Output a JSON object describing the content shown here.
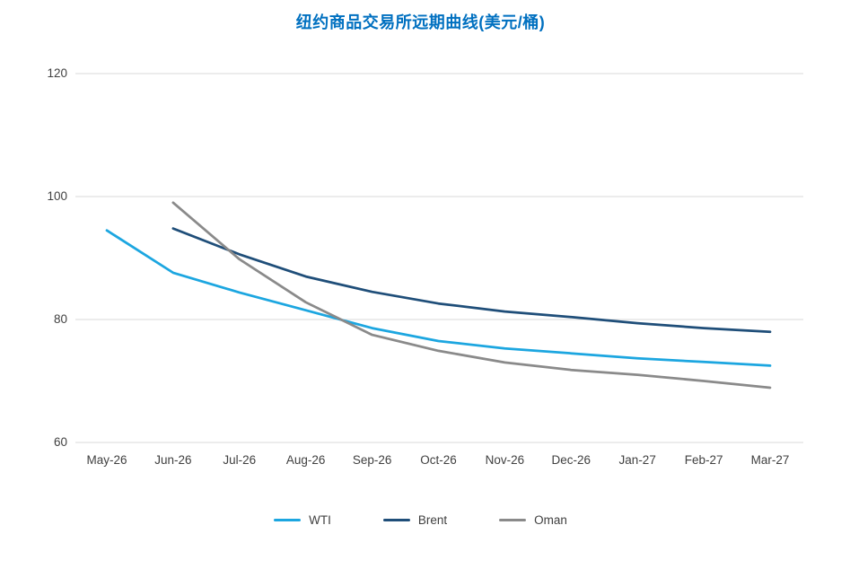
{
  "title": {
    "text": "纽约商品交易所远期曲线(美元/桶)",
    "color": "#0070C0"
  },
  "colors": {
    "gridline": "#D9D9D9",
    "axis_text": "#404040",
    "background": "#FFFFFF"
  },
  "chart_data": {
    "type": "line",
    "title": "纽约商品交易所远期曲线(美元/桶)",
    "categories": [
      "May-26",
      "Jun-26",
      "Jul-26",
      "Aug-26",
      "Sep-26",
      "Oct-26",
      "Nov-26",
      "Dec-26",
      "Jan-27",
      "Feb-27",
      "Mar-27"
    ],
    "series": [
      {
        "name": "WTI",
        "color": "#1CA6E0",
        "values": [
          94.5,
          87.6,
          84.4,
          81.5,
          78.6,
          76.5,
          75.3,
          74.5,
          73.7,
          73.1,
          72.5
        ]
      },
      {
        "name": "Brent",
        "color": "#1F4E79",
        "values": [
          null,
          94.8,
          90.6,
          87.0,
          84.5,
          82.6,
          81.3,
          80.4,
          79.4,
          78.6,
          78.0
        ]
      },
      {
        "name": "Oman",
        "color": "#8A8A8A",
        "values": [
          null,
          99.0,
          89.8,
          82.8,
          77.5,
          74.9,
          73.0,
          71.8,
          71.0,
          70.0,
          68.9
        ]
      }
    ],
    "xlabel": "",
    "ylabel": "",
    "ylim": [
      60,
      120
    ],
    "yticks": [
      60,
      80,
      100,
      120
    ],
    "grid": true,
    "legend_position": "bottom"
  }
}
